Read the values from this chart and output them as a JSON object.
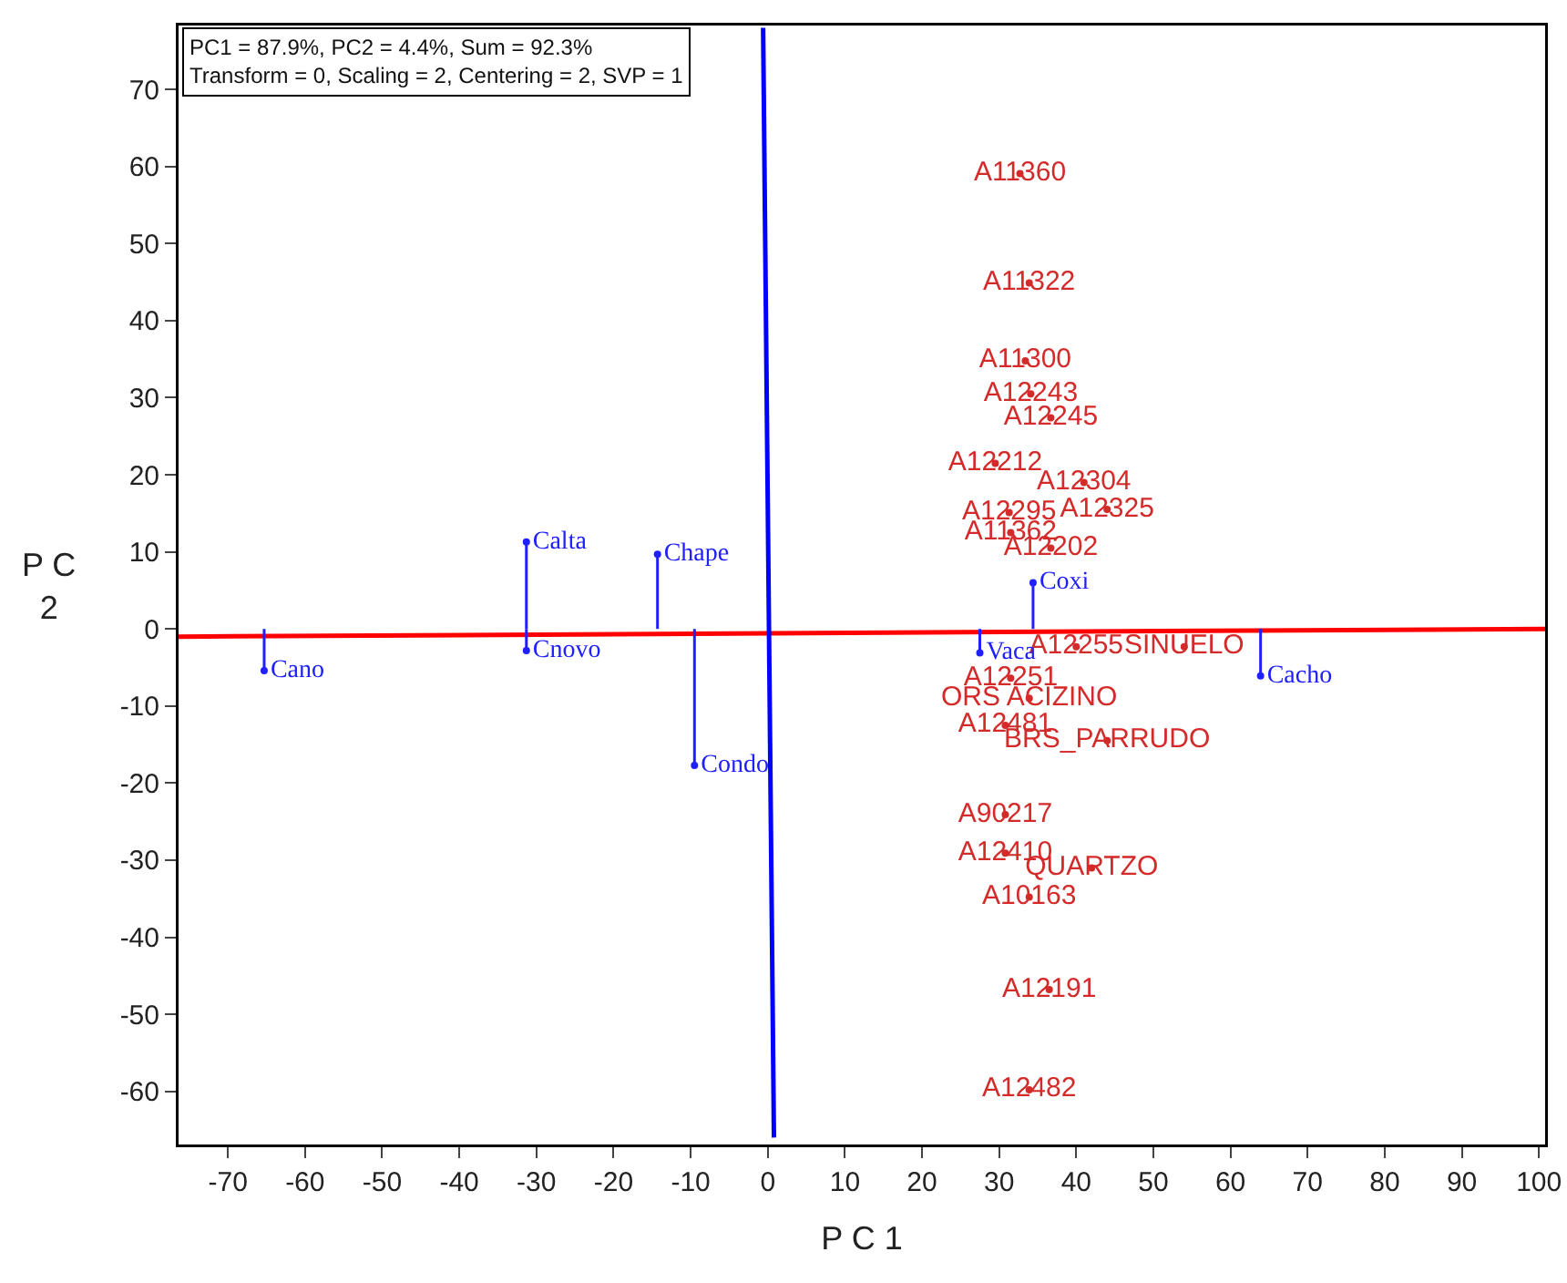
{
  "chart_data": {
    "type": "scatter",
    "xlabel": "P C 1",
    "ylabel": "P C 2",
    "annotations": [
      "PC1 = 87.9%, PC2 = 4.4%, Sum = 92.3%\nTransform = 0, Scaling = 2, Centering = 2, SVP = 1"
    ],
    "xlim": [
      -76.4,
      100.8
    ],
    "ylim": [
      -66.9,
      78.3
    ],
    "xticks": [
      -70,
      -60,
      -50,
      -40,
      -30,
      -20,
      -10,
      0,
      10,
      20,
      30,
      40,
      50,
      60,
      70,
      80,
      90,
      100
    ],
    "yticks": [
      -60,
      -50,
      -40,
      -30,
      -20,
      -10,
      0,
      10,
      20,
      30,
      40,
      50,
      60,
      70
    ],
    "grid": false,
    "series": [
      {
        "type": "line",
        "color": "#ff0000",
        "marker": "none",
        "x": [
          -76.4,
          100.8
        ],
        "values": [
          -1,
          0
        ]
      },
      {
        "type": "line",
        "color": "#0000ff",
        "marker": "none",
        "x": [
          -0.6,
          0.8
        ],
        "values": [
          78,
          -66
        ]
      },
      {
        "color": "#d42a2a",
        "marker": "circle",
        "x": [
          32.7,
          33.9,
          33.4,
          34.1,
          36.7,
          29.5,
          41,
          44,
          31.3,
          31.5,
          36.7,
          40,
          54,
          31.5,
          33.9,
          30.8,
          44,
          30.8,
          30.8,
          42,
          33.9,
          36.5,
          33.9
        ],
        "values": [
          59.1,
          44.9,
          34.8,
          30.5,
          27.4,
          21.5,
          19,
          15.5,
          15.1,
          12.5,
          10.5,
          -2.3,
          -2.3,
          -6.4,
          -9.0,
          -12.5,
          -14.5,
          -24.1,
          -29.1,
          -31.0,
          -34.8,
          -46.8,
          -59.8
        ],
        "value_labels": [
          "A11360",
          "A11322",
          "A11300",
          "A12243",
          "A12245",
          "A12212",
          "A12304",
          "A12325",
          "A12295",
          "A11362",
          "A12202",
          "A12255",
          "SINUELO",
          "A12251",
          "ORS ACIZINO",
          "A12481",
          "BRS_PARRUDO",
          "A90217",
          "A12410",
          "QUARTZO",
          "A10163",
          "A12191",
          "A12482"
        ]
      },
      {
        "type": "lollipop",
        "color": "#2020ff",
        "marker": "circle",
        "x": [
          -65.3,
          -31.3,
          -31.3,
          -14.3,
          -9.5,
          63.9,
          34.4,
          27.5
        ],
        "values": [
          -5.4,
          11.3,
          -2.8,
          9.7,
          -17.7,
          -6.1,
          6.0,
          -3.1
        ],
        "value_labels": [
          "Cano",
          "Calta",
          "Cnovo",
          "Chape",
          "Condo",
          "Cacho",
          "Coxi",
          "Vaca"
        ]
      }
    ]
  }
}
